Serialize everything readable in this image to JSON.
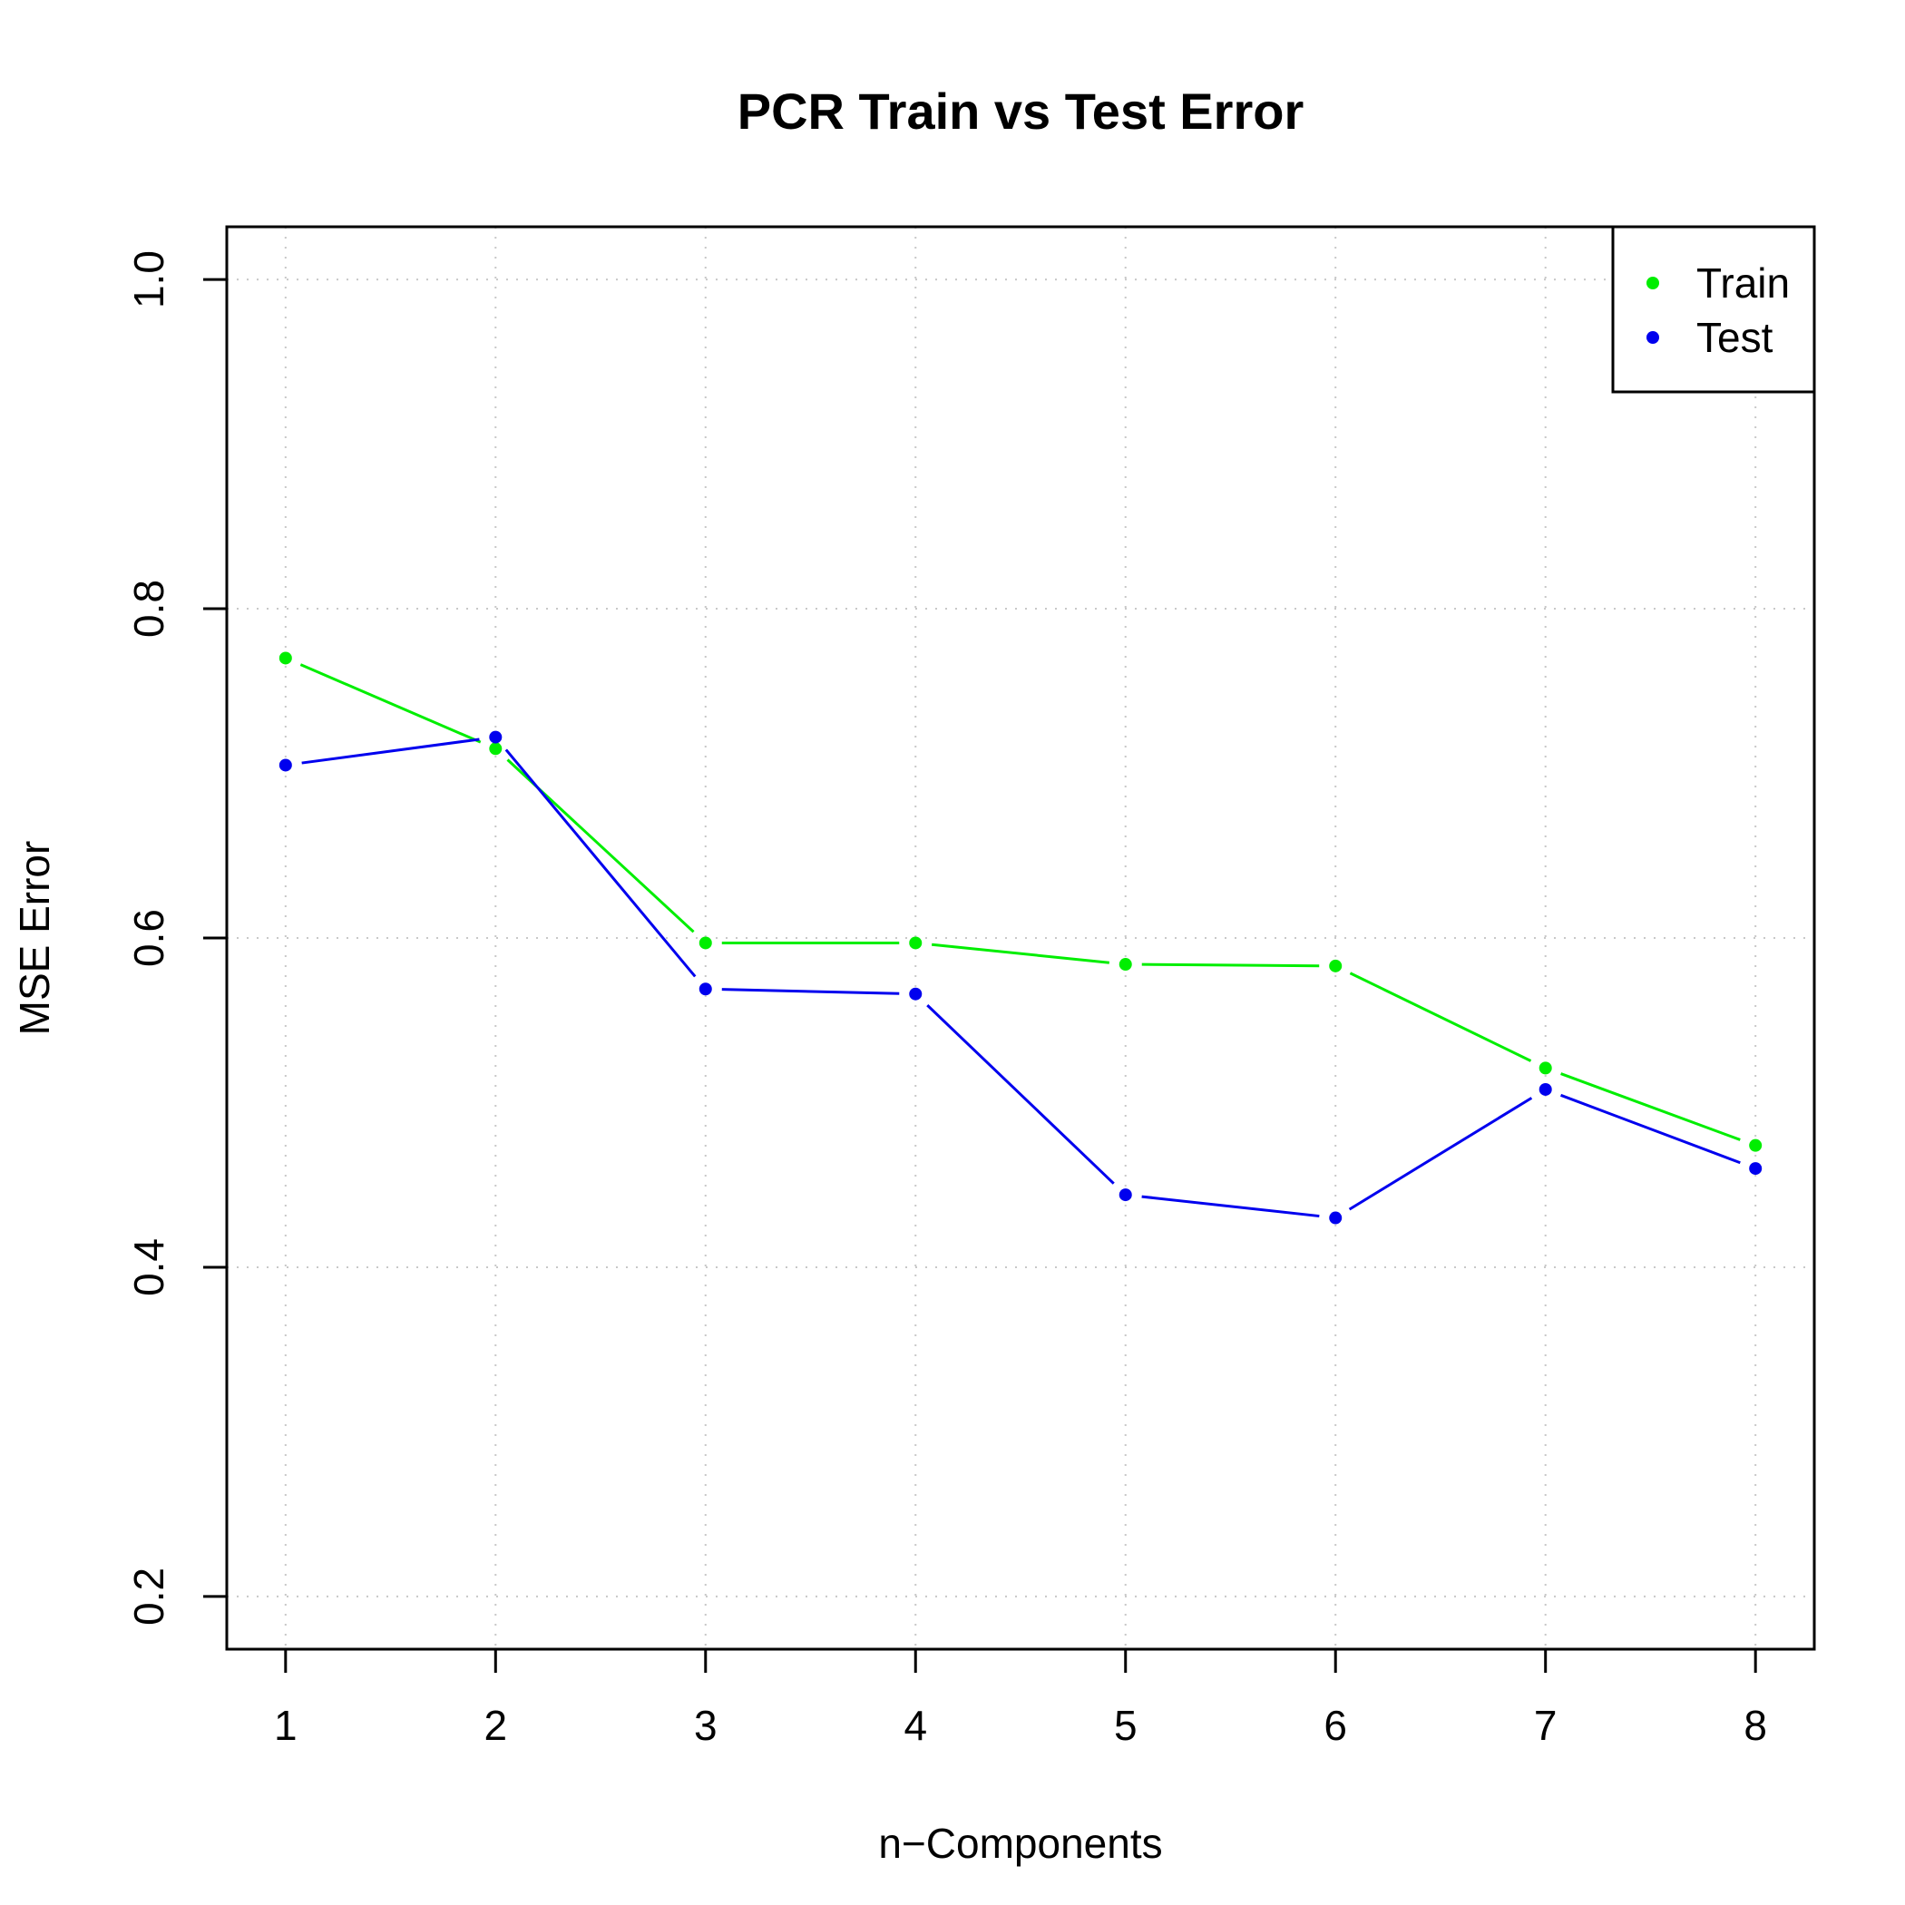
{
  "chart_data": {
    "type": "line",
    "title": "PCR Train vs Test Error",
    "xlabel": "n−Components",
    "ylabel": "MSE Error",
    "x": [
      1,
      2,
      3,
      4,
      5,
      6,
      7,
      8
    ],
    "x_ticks": [
      "1",
      "2",
      "3",
      "4",
      "5",
      "6",
      "7",
      "8"
    ],
    "y_ticks": [
      "0.2",
      "0.4",
      "0.6",
      "0.8",
      "1.0"
    ],
    "xlim": [
      0.72,
      8.28
    ],
    "ylim": [
      0.168,
      1.032
    ],
    "grid": true,
    "legend_position": "top-right",
    "series": [
      {
        "name": "Train",
        "color": "#00ee00",
        "values": [
          0.77,
          0.715,
          0.597,
          0.597,
          0.584,
          0.583,
          0.521,
          0.474
        ]
      },
      {
        "name": "Test",
        "color": "#0000ee",
        "values": [
          0.705,
          0.722,
          0.569,
          0.566,
          0.444,
          0.43,
          0.508,
          0.46
        ]
      }
    ]
  }
}
